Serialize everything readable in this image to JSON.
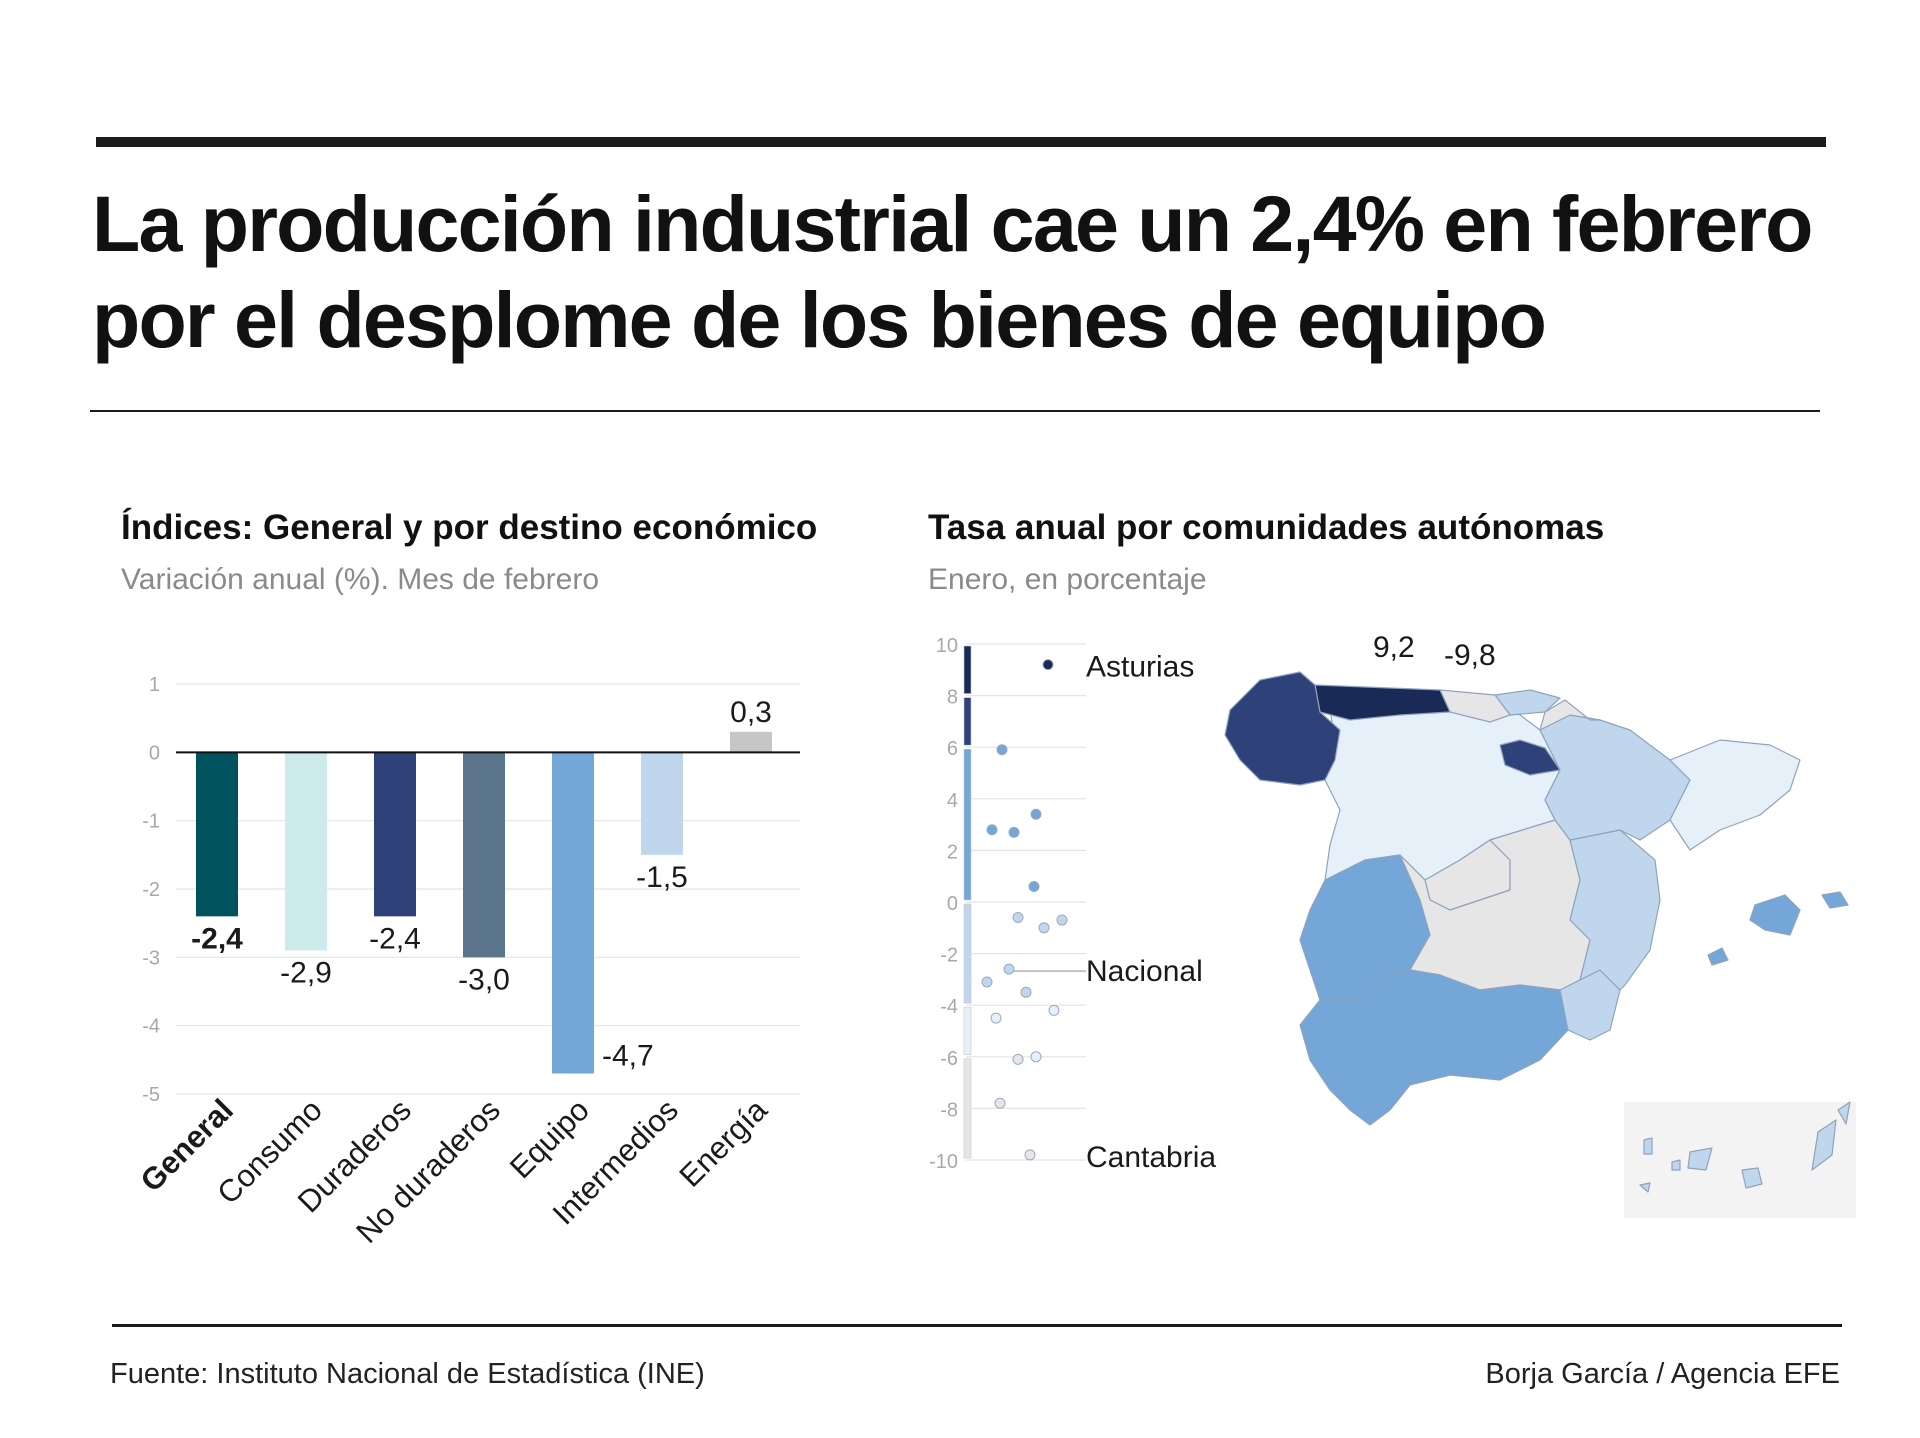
{
  "headline": "La producción industrial cae un 2,4% en febrero por el desplome de los bienes de equipo",
  "footer": {
    "source": "Fuente: Instituto Nacional de Estadística (INE)",
    "credit": "Borja García / Agencia EFE"
  },
  "colors": {
    "general": "#00535e",
    "consumo": "#cdebed",
    "duraderos": "#2e4178",
    "no_duraderos": "#5b758d",
    "equipo": "#74a6d8",
    "intermedios": "#bfd6ec",
    "energia": "#c6c6c6",
    "map_darkest": "#1a2a57",
    "map_dark": "#2e4178",
    "map_mid": "#74a6d8",
    "map_light": "#bfd6ec",
    "map_lighter": "#e5f0f9",
    "map_neutral": "#e6e6e6"
  },
  "left_panel": {
    "title": "Índices: General y por destino económico",
    "subtitle": "Variación anual (%). Mes de febrero"
  },
  "right_panel": {
    "title": "Tasa anual por comunidades autónomas",
    "subtitle": "Enero, en porcentaje",
    "map_labels": [
      "9,2",
      "-9,8"
    ],
    "map_regions": [
      "galicia",
      "asturias",
      "cantabria",
      "pais-vasco",
      "navarra",
      "la-rioja",
      "aragon",
      "cataluna",
      "castilla-y-leon",
      "madrid",
      "castilla-la-mancha",
      "valencia",
      "murcia",
      "extremadura",
      "andalucia",
      "baleares",
      "canarias"
    ]
  },
  "chart_data": [
    {
      "type": "bar",
      "title": "Índices: General y por destino económico",
      "subtitle": "Variación anual (%). Mes de febrero",
      "categories": [
        "General",
        "Consumo",
        "Duraderos",
        "No duraderos",
        "Equipo",
        "Intermedios",
        "Energía"
      ],
      "values": [
        -2.4,
        -2.9,
        -2.4,
        -3.0,
        -4.7,
        -1.5,
        0.3
      ],
      "value_labels": [
        "-2,4",
        "-2,9",
        "-2,4",
        "-3,0",
        "-4,7",
        "-1,5",
        "0,3"
      ],
      "ylim": [
        -5,
        1
      ],
      "yticks": [
        1,
        0,
        -1,
        -2,
        -3,
        -4,
        -5
      ],
      "grid": true,
      "highlight": "General"
    },
    {
      "type": "scatter",
      "title": "Tasa anual por comunidades autónomas",
      "subtitle": "Enero, en porcentaje",
      "ylim": [
        -10,
        10
      ],
      "yticks": [
        10,
        8,
        6,
        4,
        2,
        0,
        -2,
        -4,
        -6,
        -8,
        -10
      ],
      "grid": true,
      "values": [
        9.2,
        5.9,
        3.4,
        2.8,
        2.7,
        0.6,
        -0.6,
        -0.7,
        -1.0,
        -2.6,
        -3.1,
        -3.5,
        -4.2,
        -4.5,
        -6.0,
        -6.1,
        -7.8,
        -9.8
      ],
      "annotations": [
        {
          "label": "Asturias",
          "value": 9.2
        },
        {
          "label": "Nacional",
          "value": -2.6
        },
        {
          "label": "Cantabria",
          "value": -9.8
        }
      ],
      "legend_bands": [
        {
          "from": 8,
          "to": 10,
          "color": "#1a2a57"
        },
        {
          "from": 6,
          "to": 8,
          "color": "#2e4178"
        },
        {
          "from": 0,
          "to": 6,
          "color": "#74a6d8"
        },
        {
          "from": -4,
          "to": 0,
          "color": "#bfd6ec"
        },
        {
          "from": -6,
          "to": -4,
          "color": "#e5f0f9"
        },
        {
          "from": -10,
          "to": -6,
          "color": "#e6e6e6"
        }
      ]
    }
  ]
}
